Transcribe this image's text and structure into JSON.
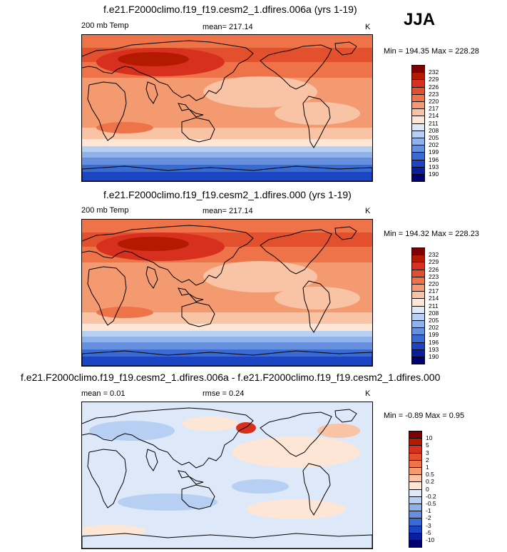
{
  "season": "JJA",
  "panels": [
    {
      "title": "f.e21.F2000climo.f19_f19.cesm2_1.dfires.006a (yrs 1-19)",
      "left_label": "200 mb Temp",
      "center_label": "mean= 217.14",
      "units": "K",
      "minmax": "Min = 194.35 Max = 228.28",
      "colorbar": [
        "232",
        "229",
        "226",
        "223",
        "220",
        "217",
        "214",
        "211",
        "208",
        "205",
        "202",
        "199",
        "196",
        "193",
        "190"
      ]
    },
    {
      "title": "f.e21.F2000climo.f19_f19.cesm2_1.dfires.000 (yrs 1-19)",
      "left_label": "200 mb Temp",
      "center_label": "mean= 217.14",
      "units": "K",
      "minmax": "Min = 194.32 Max = 228.23",
      "colorbar": [
        "232",
        "229",
        "226",
        "223",
        "220",
        "217",
        "214",
        "211",
        "208",
        "205",
        "202",
        "199",
        "196",
        "193",
        "190"
      ]
    },
    {
      "title": "f.e21.F2000climo.f19_f19.cesm2_1.dfires.006a - f.e21.F2000climo.f19_f19.cesm2_1.dfires.000",
      "left_label": "mean =   0.01",
      "center_label": "rmse =   0.24",
      "units": "K",
      "minmax": "Min =  -0.89 Max =   0.95",
      "colorbar": [
        "10",
        "5",
        "3",
        "2",
        "1",
        "0.5",
        "0.2",
        "0",
        "-0.2",
        "-0.5",
        "-1",
        "-2",
        "-3",
        "-5",
        "-10"
      ]
    }
  ],
  "colors": {
    "scale": [
      "#7f0000",
      "#b31a00",
      "#d7301f",
      "#e3502e",
      "#ef7349",
      "#f49a70",
      "#f9c3a5",
      "#fde6d6",
      "#dde9f8",
      "#b7cff2",
      "#8fb2ea",
      "#6690de",
      "#3a6bd2",
      "#1c45c4",
      "#0a1f9e",
      "#00006e"
    ],
    "coast": "#000000"
  },
  "chart_data": [
    {
      "type": "heatmap",
      "title": "f.e21.F2000climo.f19_f19.cesm2_1.dfires.006a (yrs 1-19)",
      "variable": "200 mb Temp",
      "units": "K",
      "mean": 217.14,
      "min": 194.35,
      "max": 228.28,
      "levels": [
        190,
        193,
        196,
        199,
        202,
        205,
        208,
        211,
        214,
        217,
        220,
        223,
        226,
        229,
        232
      ]
    },
    {
      "type": "heatmap",
      "title": "f.e21.F2000climo.f19_f19.cesm2_1.dfires.000 (yrs 1-19)",
      "variable": "200 mb Temp",
      "units": "K",
      "mean": 217.14,
      "min": 194.32,
      "max": 228.23,
      "levels": [
        190,
        193,
        196,
        199,
        202,
        205,
        208,
        211,
        214,
        217,
        220,
        223,
        226,
        229,
        232
      ]
    },
    {
      "type": "heatmap",
      "title": "f.e21.F2000climo.f19_f19.cesm2_1.dfires.006a - f.e21.F2000climo.f19_f19.cesm2_1.dfires.000",
      "units": "K",
      "mean": 0.01,
      "rmse": 0.24,
      "min": -0.89,
      "max": 0.95,
      "levels": [
        -10,
        -5,
        -3,
        -2,
        -1,
        -0.5,
        -0.2,
        0,
        0.2,
        0.5,
        1,
        2,
        3,
        5,
        10
      ]
    }
  ]
}
